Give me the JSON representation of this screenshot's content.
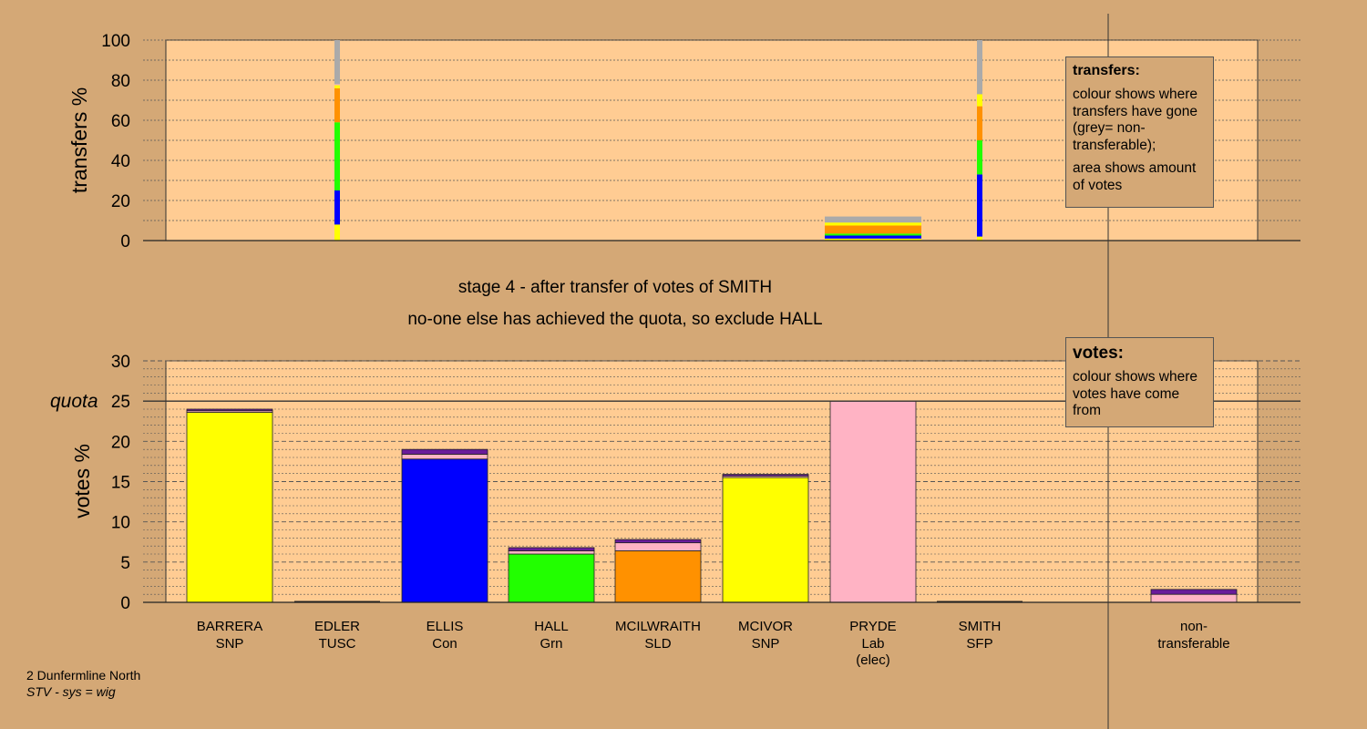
{
  "colors": {
    "background": "#d4a876",
    "plot_background": "#ffcc93",
    "SNP": "#ffff00",
    "TUSC": "#d41a1a",
    "Con": "#0000ff",
    "Grn": "#22ff00",
    "SLD": "#ff9100",
    "Lab": "#ffb3c4",
    "SFP": "#6a1b9a",
    "non_transferable": "#aaaaaa"
  },
  "stage": {
    "line1": "stage 4 - after transfer of votes of SMITH",
    "line2": "no-one else has achieved the quota, so exclude HALL"
  },
  "legend_transfers": {
    "title": "transfers:",
    "text1": "colour shows where transfers have gone (grey= non-transferable);",
    "text2": "area shows amount of votes"
  },
  "legend_votes": {
    "title": "votes:",
    "text1": "colour shows where votes have come from"
  },
  "footer": {
    "area": "2 Dunfermline North",
    "system": "STV - sys = wig"
  },
  "candidates": [
    {
      "name": "BARRERA",
      "party": "SNP",
      "note": ""
    },
    {
      "name": "EDLER",
      "party": "TUSC",
      "note": ""
    },
    {
      "name": "ELLIS",
      "party": "Con",
      "note": ""
    },
    {
      "name": "HALL",
      "party": "Grn",
      "note": ""
    },
    {
      "name": "MCILWRAITH",
      "party": "SLD",
      "note": ""
    },
    {
      "name": "MCIVOR",
      "party": "SNP",
      "note": ""
    },
    {
      "name": "PRYDE",
      "party": "Lab",
      "note": "(elec)"
    },
    {
      "name": "SMITH",
      "party": "SFP",
      "note": ""
    },
    {
      "name": "non-",
      "party": "transferable",
      "note": ""
    }
  ],
  "chart_data": [
    {
      "type": "bar",
      "ylabel": "transfers %",
      "ylim": [
        0,
        100
      ],
      "yticks": [
        0,
        20,
        40,
        60,
        80,
        100
      ],
      "transfers": [
        {
          "from": "EDLER",
          "segments": [
            {
              "to": "BARRERA",
              "party": "SNP",
              "value": 8
            },
            {
              "to": "ELLIS",
              "party": "Con",
              "value": 17
            },
            {
              "to": "HALL",
              "party": "Grn",
              "value": 34
            },
            {
              "to": "MCILWRAITH",
              "party": "SLD",
              "value": 17
            },
            {
              "to": "MCIVOR",
              "party": "SNP",
              "value": 1.5
            },
            {
              "to": "PRYDE",
              "party": "Lab",
              "value": 0.5
            },
            {
              "to": "non-transferable",
              "party": "",
              "value": 22
            }
          ]
        },
        {
          "from": "PRYDE",
          "segments": [
            {
              "to": "BARRERA",
              "party": "SNP",
              "value": 1
            },
            {
              "to": "ELLIS",
              "party": "Con",
              "value": 1.5
            },
            {
              "to": "HALL",
              "party": "Grn",
              "value": 1
            },
            {
              "to": "MCILWRAITH",
              "party": "SLD",
              "value": 4
            },
            {
              "to": "MCIVOR",
              "party": "SNP",
              "value": 1.5
            },
            {
              "to": "non-transferable",
              "party": "",
              "value": 3
            }
          ]
        },
        {
          "from": "SMITH",
          "segments": [
            {
              "to": "BARRERA",
              "party": "SNP",
              "value": 2
            },
            {
              "to": "ELLIS",
              "party": "Con",
              "value": 31
            },
            {
              "to": "HALL",
              "party": "Grn",
              "value": 17
            },
            {
              "to": "MCILWRAITH",
              "party": "SLD",
              "value": 17
            },
            {
              "to": "MCIVOR",
              "party": "SNP",
              "value": 6
            },
            {
              "to": "non-transferable",
              "party": "",
              "value": 27
            }
          ]
        }
      ]
    },
    {
      "type": "bar",
      "ylabel": "votes %",
      "ylim": [
        0,
        30
      ],
      "yticks": [
        0,
        5,
        10,
        15,
        20,
        25,
        30
      ],
      "quota": 25,
      "quota_label": "quota",
      "bars": [
        {
          "candidate": "BARRERA",
          "segments": [
            {
              "from": "SNP",
              "value": 23.6
            },
            {
              "from": "Lab",
              "value": 0.2
            },
            {
              "from": "SFP",
              "value": 0.2
            }
          ]
        },
        {
          "candidate": "EDLER",
          "segments": []
        },
        {
          "candidate": "ELLIS",
          "segments": [
            {
              "from": "Con",
              "value": 17.8
            },
            {
              "from": "Lab",
              "value": 0.6
            },
            {
              "from": "SFP",
              "value": 0.6
            }
          ]
        },
        {
          "candidate": "HALL",
          "segments": [
            {
              "from": "Grn",
              "value": 6.0
            },
            {
              "from": "Lab",
              "value": 0.4
            },
            {
              "from": "SFP",
              "value": 0.4
            }
          ]
        },
        {
          "candidate": "MCILWRAITH",
          "segments": [
            {
              "from": "SLD",
              "value": 6.4
            },
            {
              "from": "Lab",
              "value": 1.0
            },
            {
              "from": "SFP",
              "value": 0.4
            }
          ]
        },
        {
          "candidate": "MCIVOR",
          "segments": [
            {
              "from": "SNP",
              "value": 15.5
            },
            {
              "from": "Lab",
              "value": 0.2
            },
            {
              "from": "SFP",
              "value": 0.2
            }
          ]
        },
        {
          "candidate": "PRYDE",
          "segments": [
            {
              "from": "Lab",
              "value": 25.0
            }
          ]
        },
        {
          "candidate": "SMITH",
          "segments": []
        },
        {
          "candidate": "non-transferable",
          "segments": [
            {
              "from": "Lab",
              "value": 1.0
            },
            {
              "from": "SFP",
              "value": 0.6
            }
          ]
        }
      ]
    }
  ]
}
